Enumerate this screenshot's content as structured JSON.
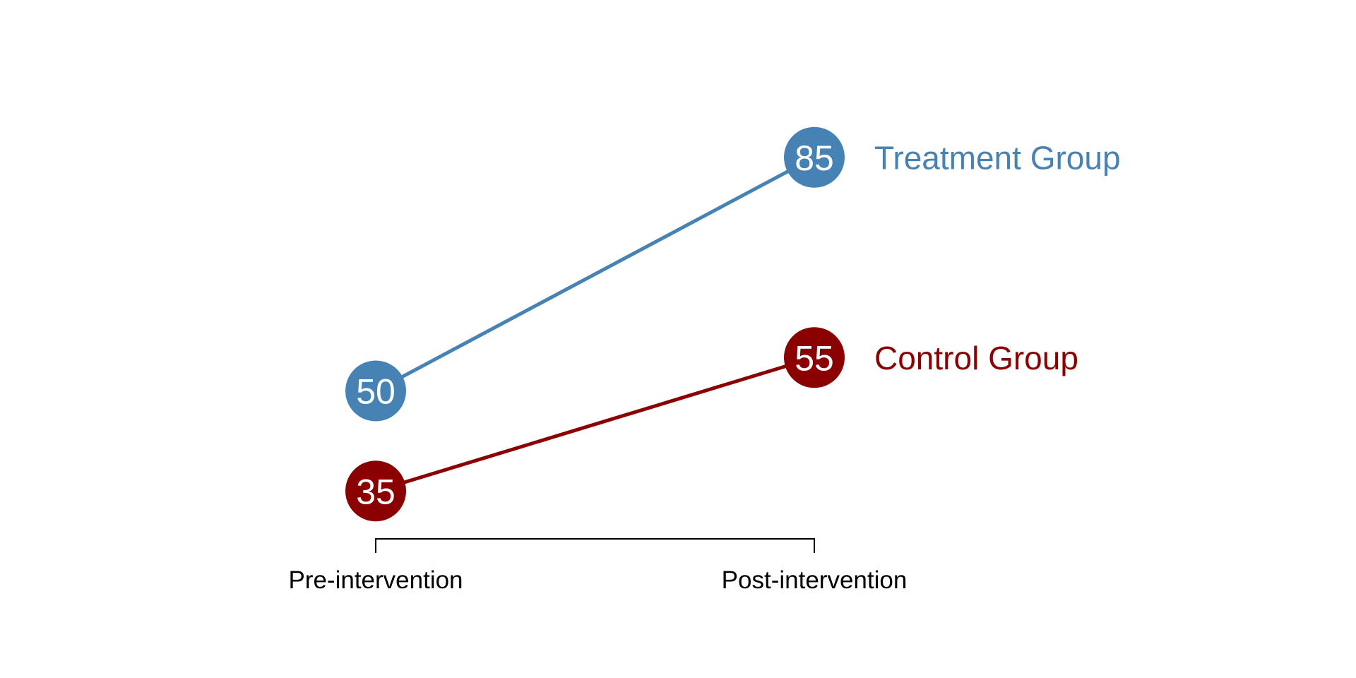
{
  "chart_data": {
    "type": "line",
    "subtype": "slopegraph",
    "title": "",
    "categories": [
      "Pre-intervention",
      "Post-intervention"
    ],
    "series": [
      {
        "name": "Treatment Group",
        "values": [
          50,
          85
        ],
        "color": "#4682B4"
      },
      {
        "name": "Control Group",
        "values": [
          35,
          55
        ],
        "color": "#8B0000"
      }
    ],
    "point_label_color": "#FFFFFF",
    "axis": {
      "bracket_color": "#000000",
      "label_color": "#000000"
    },
    "grid": false,
    "legend_position": "right-of-last-point",
    "background": "#FFFFFF",
    "value_range_estimate": [
      25,
      95
    ]
  }
}
